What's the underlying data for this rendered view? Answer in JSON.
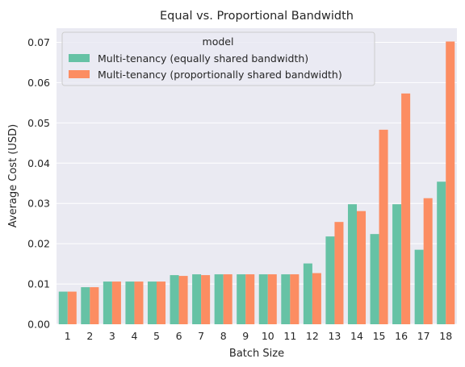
{
  "chart_data": {
    "type": "bar",
    "title": "Equal vs. Proportional Bandwidth",
    "xlabel": "Batch Size",
    "ylabel": "Average Cost (USD)",
    "categories": [
      "1",
      "2",
      "3",
      "4",
      "5",
      "6",
      "7",
      "8",
      "9",
      "10",
      "11",
      "12",
      "13",
      "14",
      "15",
      "16",
      "17",
      "18"
    ],
    "ylim": [
      0,
      0.0735
    ],
    "yticks": [
      "0.00",
      "0.01",
      "0.02",
      "0.03",
      "0.04",
      "0.05",
      "0.06",
      "0.07"
    ],
    "ytick_values": [
      0,
      0.01,
      0.02,
      0.03,
      0.04,
      0.05,
      0.06,
      0.07
    ],
    "grid": true,
    "legend": {
      "title": "model",
      "placement": "top-left"
    },
    "series": [
      {
        "name": "Multi-tenancy (equally shared bandwidth)",
        "color": "#66c2a5",
        "values": [
          0.0081,
          0.0092,
          0.0106,
          0.0106,
          0.0106,
          0.0122,
          0.0124,
          0.0124,
          0.0124,
          0.0124,
          0.0124,
          0.0151,
          0.0218,
          0.0298,
          0.0224,
          0.0298,
          0.0185,
          0.0354
        ]
      },
      {
        "name": "Multi-tenancy (proportionally shared bandwidth)",
        "color": "#fc8d62",
        "values": [
          0.0081,
          0.0092,
          0.0106,
          0.0106,
          0.0106,
          0.012,
          0.0122,
          0.0124,
          0.0124,
          0.0124,
          0.0124,
          0.0127,
          0.0254,
          0.0281,
          0.0483,
          0.0573,
          0.0313,
          0.0702
        ]
      }
    ]
  }
}
